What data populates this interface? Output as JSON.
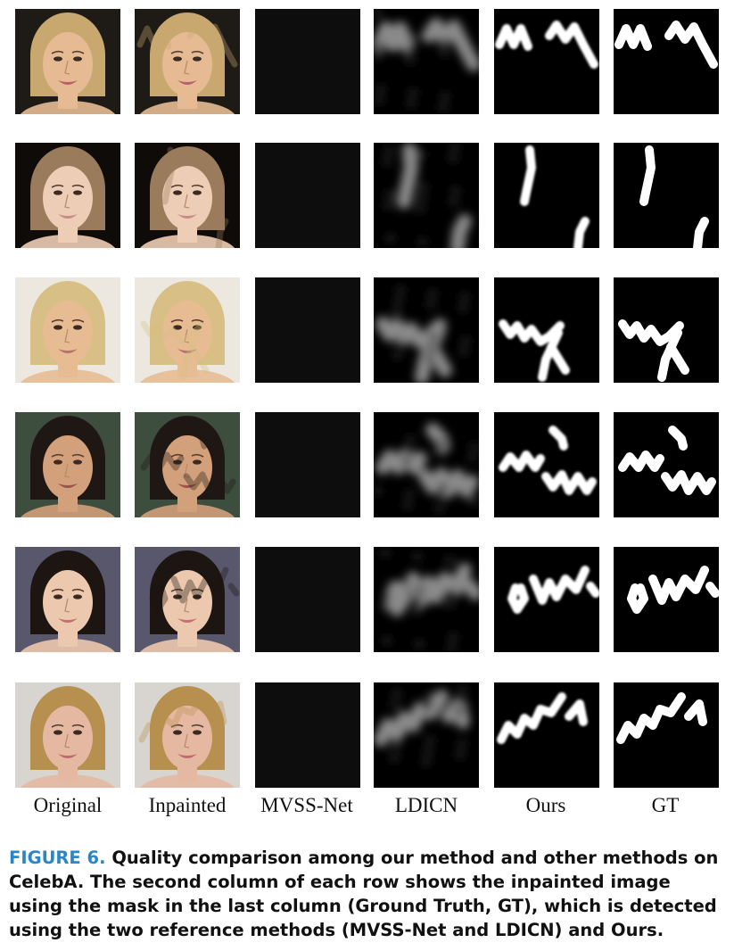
{
  "figure": {
    "columns": [
      "Original",
      "Inpainted",
      "MVSS-Net",
      "LDICN",
      "Ours",
      "GT"
    ],
    "rows": [
      {
        "background": "#1e1a16",
        "hair": "#c9a870",
        "skin": "#e6bb93",
        "lip": "#b8616a"
      },
      {
        "background": "#0e0b09",
        "hair": "#9a7b5c",
        "skin": "#eecdb6",
        "lip": "#c98a8a"
      },
      {
        "background": "#ece8e0",
        "hair": "#d8bf85",
        "skin": "#e7bc93",
        "lip": "#b9716b"
      },
      {
        "background": "#3d4d3e",
        "hair": "#1f1713",
        "skin": "#d2a07a",
        "lip": "#9c5249"
      },
      {
        "background": "#59576c",
        "hair": "#1c1512",
        "skin": "#ecc8ae",
        "lip": "#c46f71"
      },
      {
        "background": "#d8d5d0",
        "hair": "#b7904f",
        "skin": "#e5b8a2",
        "lip": "#c06a6e"
      }
    ],
    "caption_label": "FIGURE 6.",
    "caption_text": "Quality comparison among our method and other methods on CelebA. The second column of each row shows the inpainted image using the mask in the last column (Ground Truth, GT), which is detected using the two reference methods (MVSS-Net and LDICN) and Ours."
  }
}
